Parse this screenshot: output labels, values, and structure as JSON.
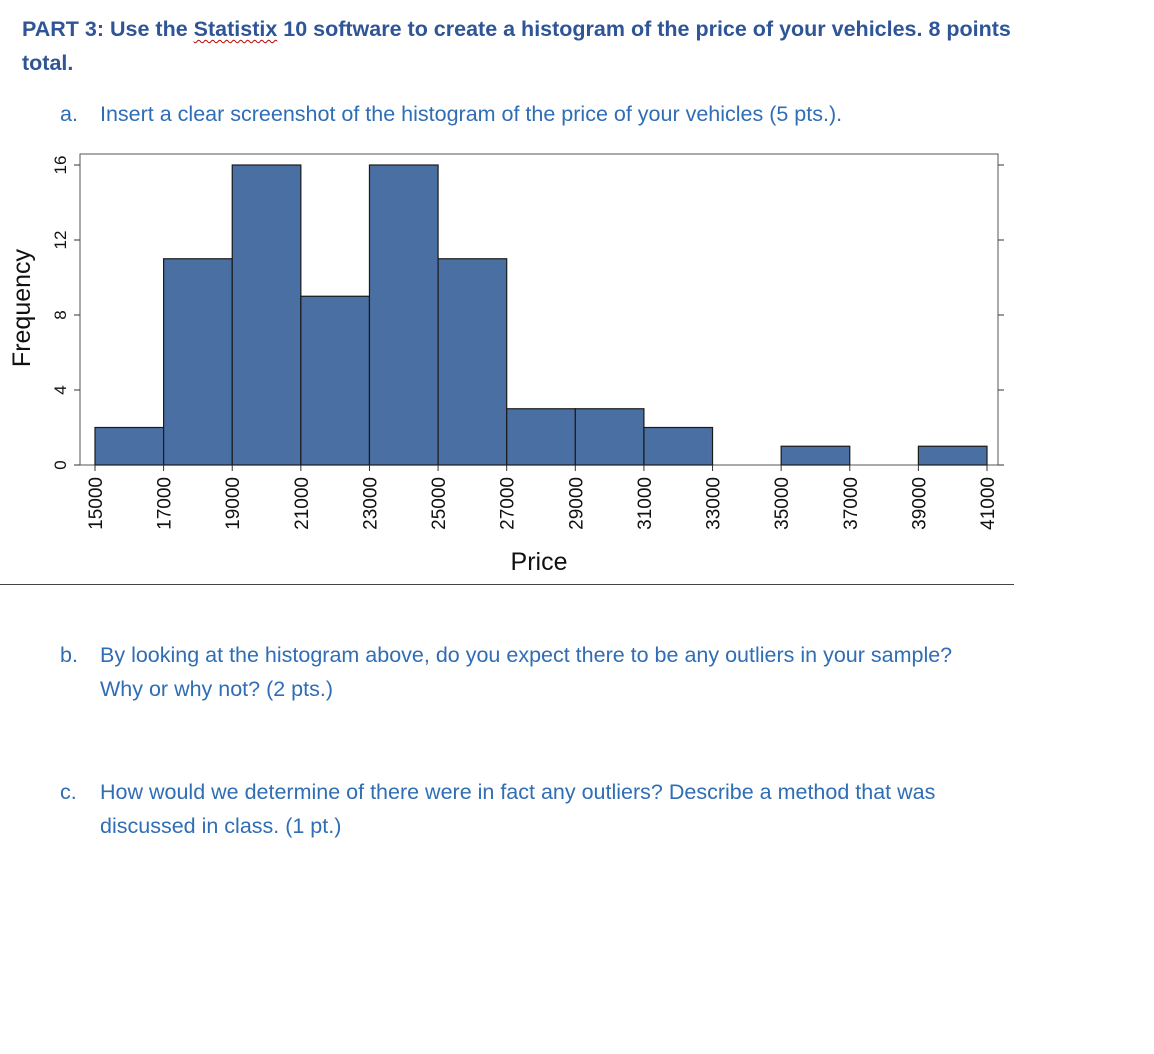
{
  "document": {
    "heading_pre": "PART 3: Use the ",
    "heading_software": "Statistix",
    "heading_post": " 10 software to create a histogram of the price of your vehicles. 8 points total.",
    "question_a": {
      "letter": "a.",
      "text": "Insert a clear screenshot of the histogram of the price of your vehicles (5 pts.)."
    },
    "question_b": {
      "letter": "b.",
      "text": "By looking at the histogram above, do you expect there to be any outliers in your sample? Why or why not? (2 pts.)"
    },
    "question_c": {
      "letter": "c.",
      "text": "How would we determine of there were in fact any outliers? Describe a method that was discussed in class.  (1 pt.)"
    }
  },
  "colors": {
    "heading": "#2f5597",
    "question_text": "#2f6db5",
    "bar_fill": "#4a6fa3",
    "bar_edge": "#1a1a1a"
  },
  "chart_data": {
    "type": "bar",
    "xlabel": "Price",
    "ylabel": "Frequency",
    "bin_edges": [
      15000,
      17000,
      19000,
      21000,
      23000,
      25000,
      27000,
      29000,
      31000,
      33000,
      35000,
      37000,
      39000,
      41000
    ],
    "values": [
      2,
      11,
      16,
      9,
      16,
      11,
      3,
      3,
      2,
      0,
      1,
      0,
      1
    ],
    "x_ticks": [
      15000,
      17000,
      19000,
      21000,
      23000,
      25000,
      27000,
      29000,
      31000,
      33000,
      35000,
      37000,
      39000,
      41000
    ],
    "y_ticks": [
      0,
      4,
      8,
      12,
      16
    ],
    "xlim": [
      15000,
      41000
    ],
    "ylim": [
      0,
      16
    ],
    "grid": false,
    "legend": "none"
  }
}
